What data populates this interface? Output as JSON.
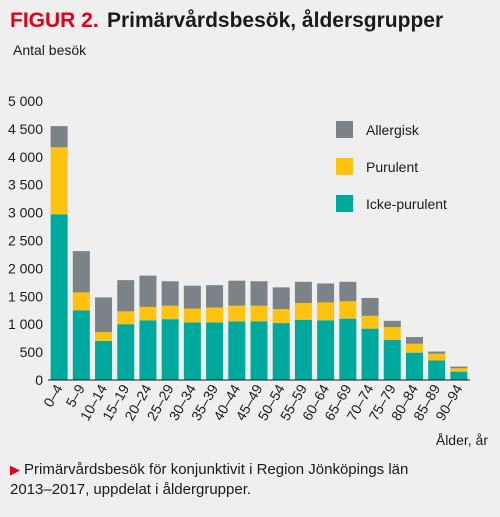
{
  "figure": {
    "label": "FIGUR 2.",
    "title": "Primärvårdsbesök, åldersgrupper"
  },
  "caption": {
    "marker": "▶",
    "line1": "Primärvårdsbesök för konjunktivit i Region Jönköpings län",
    "line2": "2013–2017, uppdelat i åldergrupper."
  },
  "chart_data": {
    "type": "bar",
    "stacked": true,
    "ylabel": "Antal besök",
    "xlabel": "Ålder, år",
    "ylim": [
      0,
      5000
    ],
    "yticks": [
      0,
      500,
      1000,
      1500,
      2000,
      2500,
      3000,
      3500,
      4000,
      4500,
      5000
    ],
    "ytick_labels": [
      "0",
      "500",
      "1 000",
      "1 500",
      "2 000",
      "2 500",
      "3 000",
      "3 500",
      "4 000",
      "4 500",
      "5 000"
    ],
    "grid": false,
    "legend_position": "top-right",
    "categories": [
      "0–4",
      "5–9",
      "10–14",
      "15–19",
      "20–24",
      "25–29",
      "30–34",
      "35–39",
      "40–44",
      "45–49",
      "50–54",
      "55–59",
      "60–64",
      "65–69",
      "70–74",
      "75–79",
      "80–84",
      "85–89",
      "90–94"
    ],
    "series": [
      {
        "name": "Icke-purulent",
        "color": "#00a99d",
        "values": [
          2970,
          1250,
          700,
          1000,
          1070,
          1090,
          1030,
          1030,
          1050,
          1050,
          1020,
          1080,
          1070,
          1100,
          920,
          720,
          490,
          350,
          150
        ]
      },
      {
        "name": "Purulent",
        "color": "#ffc20e",
        "values": [
          1200,
          320,
          160,
          230,
          240,
          240,
          250,
          270,
          280,
          280,
          250,
          300,
          320,
          310,
          230,
          230,
          160,
          120,
          60
        ]
      },
      {
        "name": "Allergisk",
        "color": "#7c8388",
        "values": [
          380,
          740,
          620,
          560,
          560,
          440,
          410,
          400,
          450,
          440,
          390,
          380,
          340,
          350,
          320,
          110,
          120,
          40,
          30
        ]
      }
    ]
  }
}
